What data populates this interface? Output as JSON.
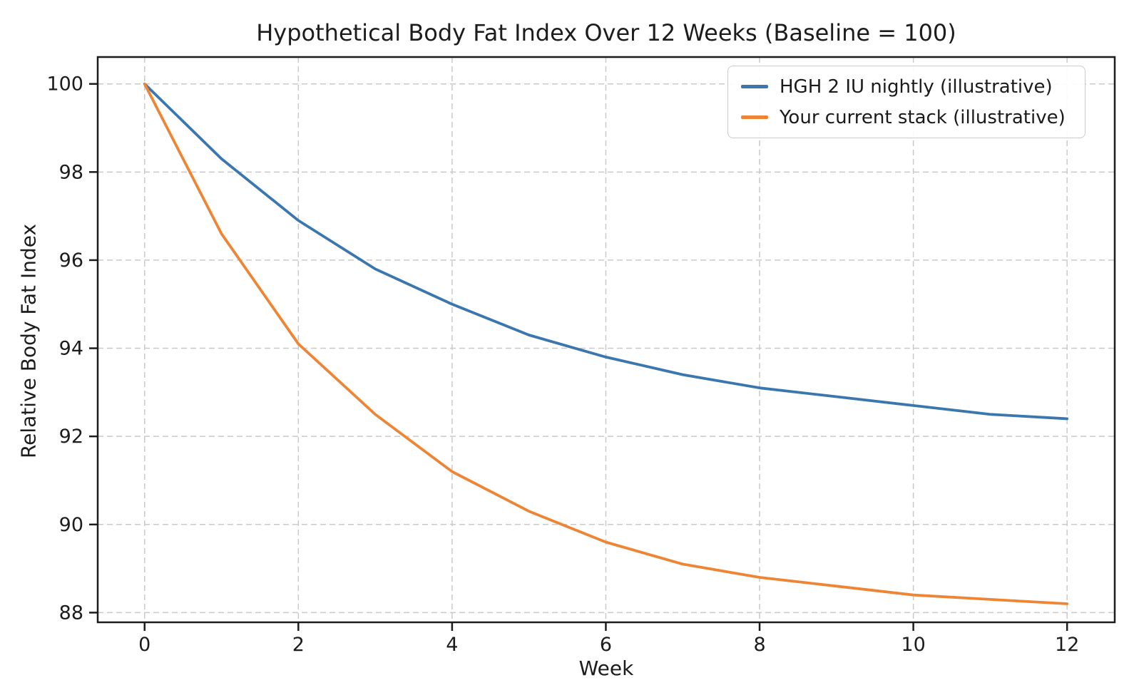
{
  "figure": {
    "background": "#ffffff"
  },
  "chart_data": {
    "type": "line",
    "title": "Hypothetical Body Fat Index Over 12 Weeks (Baseline = 100)",
    "xlabel": "Week",
    "ylabel": "Relative Body Fat Index",
    "x": [
      0,
      1,
      2,
      3,
      4,
      5,
      6,
      7,
      8,
      9,
      10,
      11,
      12
    ],
    "series": [
      {
        "name": "HGH 2 IU nightly (illustrative)",
        "color": "#3b77af",
        "values": [
          100.0,
          98.3,
          96.9,
          95.8,
          95.0,
          94.3,
          93.8,
          93.4,
          93.1,
          92.9,
          92.7,
          92.5,
          92.4
        ]
      },
      {
        "name": "Your current stack (illustrative)",
        "color": "#ee8535",
        "values": [
          100.0,
          96.6,
          94.1,
          92.5,
          91.2,
          90.3,
          89.6,
          89.1,
          88.8,
          88.6,
          88.4,
          88.3,
          88.2
        ]
      }
    ],
    "x_ticks": [
      0,
      2,
      4,
      6,
      8,
      10,
      12
    ],
    "y_ticks": [
      88,
      90,
      92,
      94,
      96,
      98,
      100
    ],
    "xlim": [
      -0.61,
      12.62
    ],
    "ylim": [
      87.78,
      100.61
    ],
    "grid": true,
    "legend_position": "upper right",
    "style": {
      "grid_color": "#c9c9c9",
      "spine_color": "#1c1c1c",
      "tick_color": "#1c1c1c",
      "text_color": "#1c1c1c",
      "line_width": 3.8
    }
  }
}
